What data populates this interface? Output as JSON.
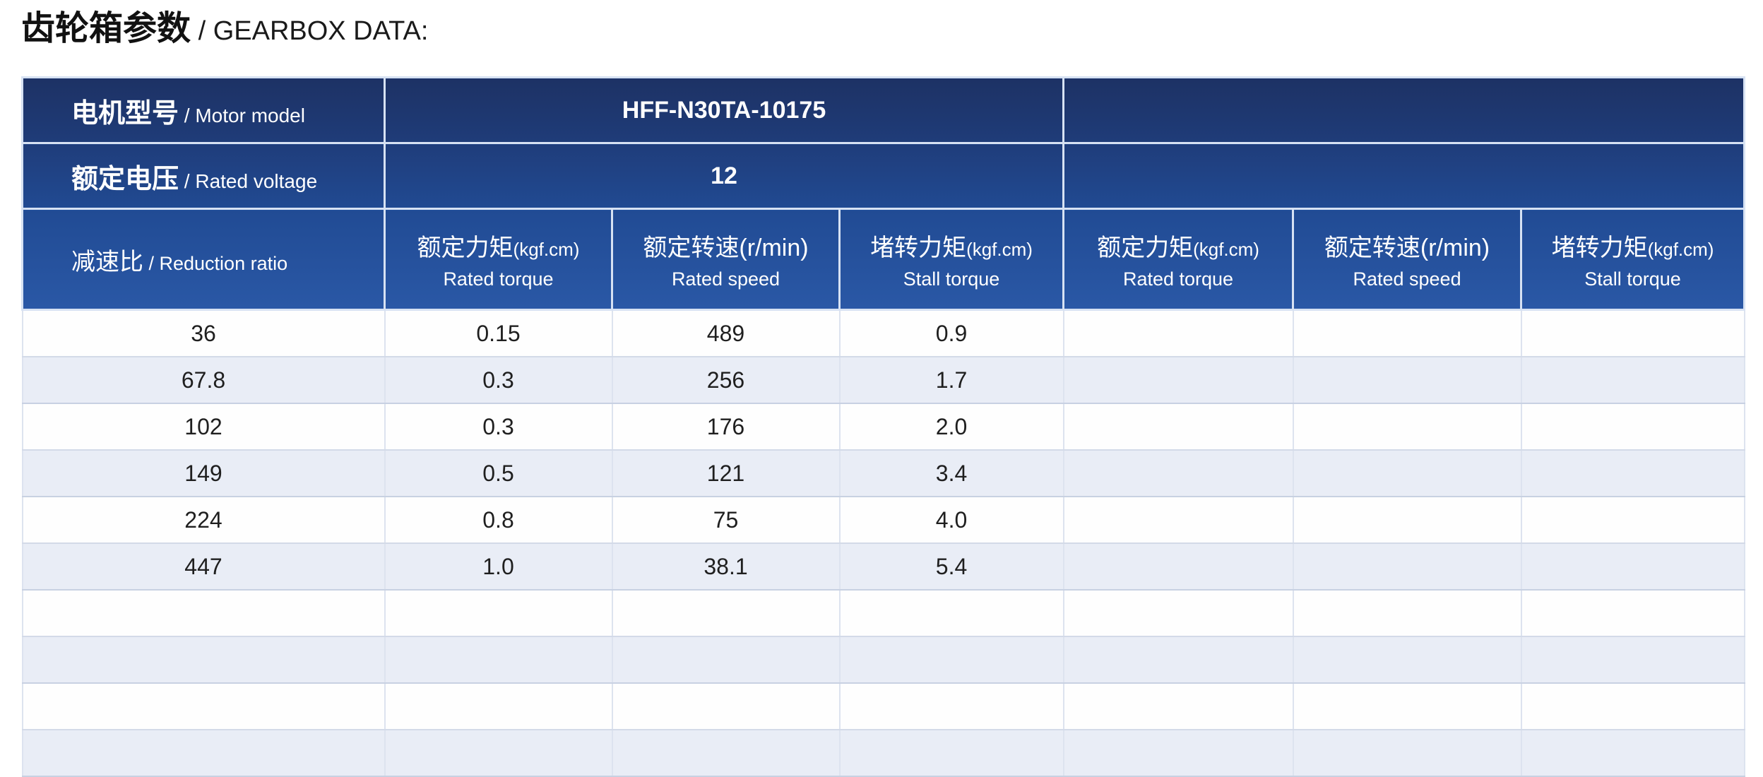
{
  "title": {
    "zh": "齿轮箱参数",
    "en": " / GEARBOX DATA:"
  },
  "info_rows": [
    {
      "label_zh": "电机型号",
      "label_en": " / Motor model",
      "value": "HFF-N30TA-10175",
      "value_right": ""
    },
    {
      "label_zh": "额定电压",
      "label_en": " / Rated voltage",
      "value": "12",
      "value_right": ""
    }
  ],
  "columns": [
    {
      "zh": "减速比",
      "en": " / Reduction ratio",
      "unit": "",
      "en2": ""
    },
    {
      "zh": "额定力矩",
      "unit": "(kgf.cm)",
      "en2": "Rated torque"
    },
    {
      "zh": "额定转速(r/min)",
      "unit": "",
      "en2": "Rated speed"
    },
    {
      "zh": "堵转力矩",
      "unit": "(kgf.cm)",
      "en2": "Stall torque"
    },
    {
      "zh": "额定力矩",
      "unit": "(kgf.cm)",
      "en2": "Rated torque"
    },
    {
      "zh": "额定转速(r/min)",
      "unit": "",
      "en2": "Rated speed"
    },
    {
      "zh": "堵转力矩",
      "unit": "(kgf.cm)",
      "en2": "Stall torque"
    }
  ],
  "table": {
    "rows": [
      [
        "36",
        "0.15",
        "489",
        "0.9",
        "",
        "",
        ""
      ],
      [
        "67.8",
        "0.3",
        "256",
        "1.7",
        "",
        "",
        ""
      ],
      [
        "102",
        "0.3",
        "176",
        "2.0",
        "",
        "",
        ""
      ],
      [
        "149",
        "0.5",
        "121",
        "3.4",
        "",
        "",
        ""
      ],
      [
        "224",
        "0.8",
        "75",
        "4.0",
        "",
        "",
        ""
      ],
      [
        "447",
        "1.0",
        "38.1",
        "5.4",
        "",
        "",
        ""
      ],
      [
        "",
        "",
        "",
        "",
        "",
        "",
        ""
      ],
      [
        "",
        "",
        "",
        "",
        "",
        "",
        ""
      ],
      [
        "",
        "",
        "",
        "",
        "",
        "",
        ""
      ],
      [
        "",
        "",
        "",
        "",
        "",
        "",
        ""
      ]
    ]
  },
  "colors": {
    "header_gradient_top": "#1d3265",
    "header_gradient_bottom": "#2a58a6",
    "header_text": "#ffffff",
    "row_alt_background": "#e9edf6",
    "body_text": "#1f1f1f"
  }
}
